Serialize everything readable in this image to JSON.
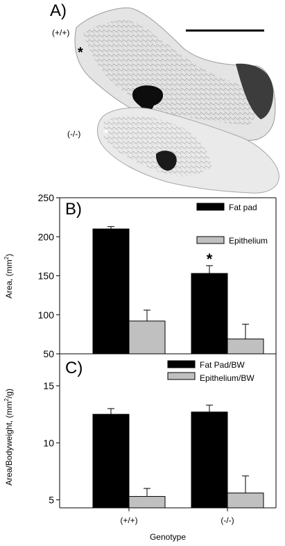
{
  "panel_a": {
    "label": "A)",
    "genotype_wt": "(+/+)",
    "genotype_ko": "(-/-)",
    "asterisk": "*"
  },
  "chart_data": [
    {
      "type": "bar",
      "panel_label": "B)",
      "ylabel": "Area, (mm",
      "ylabel_sup": "2",
      "ylabel_close": ")",
      "ylim": [
        50,
        250
      ],
      "yticks": [
        50,
        100,
        150,
        200,
        250
      ],
      "categories": [
        "(+/+)",
        "(-/-)"
      ],
      "series": [
        {
          "name": "Fat pad",
          "color": "#000000",
          "values": [
            210,
            153
          ],
          "errors": [
            3,
            10
          ]
        },
        {
          "name": "Epithelium",
          "color": "#c0c0c0",
          "values": [
            92,
            69
          ],
          "errors": [
            14,
            19
          ]
        }
      ],
      "significance": {
        "series": 0,
        "category": 1,
        "mark": "*"
      },
      "legend_position": "top-right",
      "grid": false
    },
    {
      "type": "bar",
      "panel_label": "C)",
      "ylabel": "Area/Bodyweight, (mm",
      "ylabel_sup": "2",
      "ylabel_close": "/g)",
      "xlabel": "Genotype",
      "ylim": [
        4.3,
        17.8
      ],
      "yticks": [
        5,
        10,
        15
      ],
      "categories": [
        "(+/+)",
        "(-/-)"
      ],
      "series": [
        {
          "name": "Fat Pad/BW",
          "color": "#000000",
          "values": [
            12.5,
            12.7
          ],
          "errors": [
            0.5,
            0.6
          ]
        },
        {
          "name": "Epithelium/BW",
          "color": "#c0c0c0",
          "values": [
            5.3,
            5.6
          ],
          "errors": [
            0.7,
            1.5
          ]
        }
      ],
      "legend_position": "top-right",
      "grid": false
    }
  ]
}
